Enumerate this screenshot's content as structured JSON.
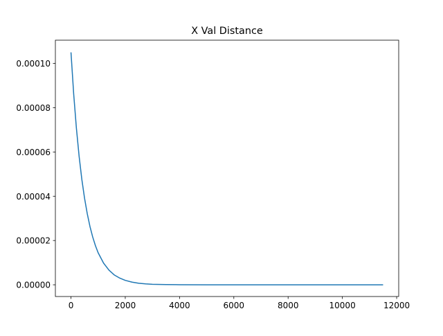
{
  "chart_data": {
    "type": "line",
    "title": "X Val Distance",
    "xlabel": "",
    "ylabel": "",
    "xlim": [
      -575,
      12075
    ],
    "ylim": [
      -5.3e-06,
      0.0001105
    ],
    "x_ticks": [
      0,
      2000,
      4000,
      6000,
      8000,
      10000,
      12000
    ],
    "x_tick_labels": [
      "0",
      "2000",
      "4000",
      "6000",
      "8000",
      "10000",
      "12000"
    ],
    "y_ticks": [
      0.0,
      2e-05,
      4e-05,
      6e-05,
      8e-05,
      0.0001
    ],
    "y_tick_labels": [
      "0.00000",
      "0.00002",
      "0.00004",
      "0.00006",
      "0.00008",
      "0.00010"
    ],
    "grid": false,
    "series": [
      {
        "color": "#1f77b4",
        "x": [
          0,
          100,
          200,
          300,
          400,
          500,
          600,
          700,
          800,
          900,
          1000,
          1200,
          1400,
          1600,
          1800,
          2000,
          2250,
          2500,
          2750,
          3000,
          3500,
          4000,
          5000,
          6000,
          7000,
          8000,
          9000,
          10000,
          11000,
          11500
        ],
        "y": [
          0.000105,
          8.61e-05,
          7.07e-05,
          5.8e-05,
          4.76e-05,
          3.91e-05,
          3.21e-05,
          2.63e-05,
          2.16e-05,
          1.77e-05,
          1.45e-05,
          9.8e-06,
          6.6e-06,
          4.4e-06,
          3e-06,
          2e-06,
          1.2e-06,
          7e-07,
          4e-07,
          2e-07,
          1e-07,
          3e-08,
          0.0,
          0.0,
          0.0,
          0.0,
          0.0,
          0.0,
          0.0,
          0.0
        ]
      }
    ]
  }
}
